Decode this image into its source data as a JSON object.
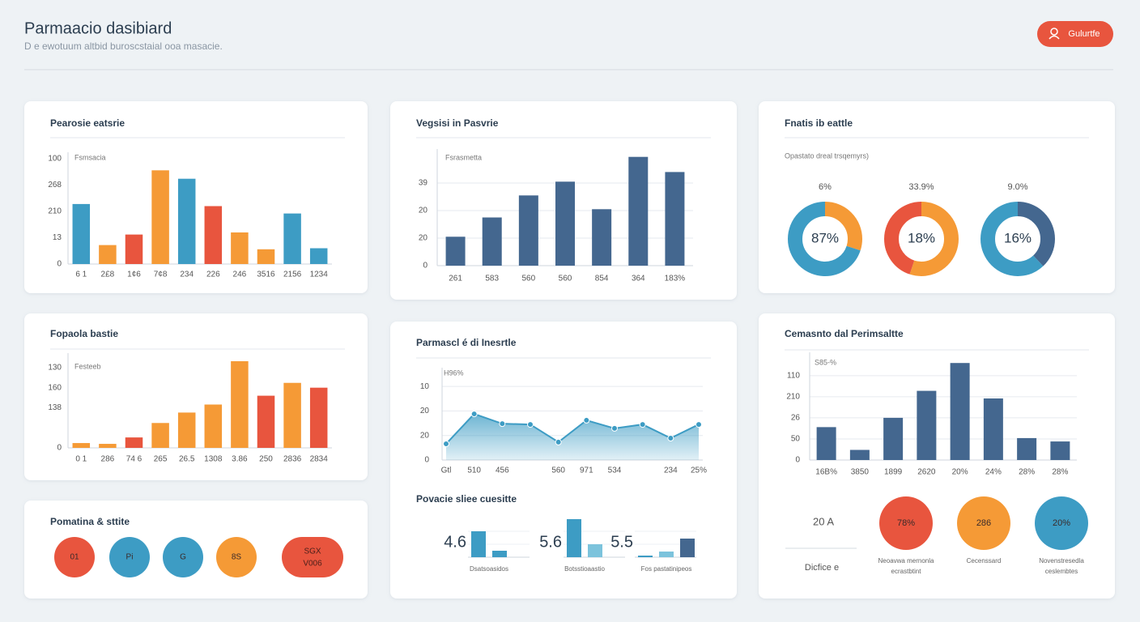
{
  "header": {
    "title": "Parmaacio dasibiard",
    "subtitle": "D e ewotuum altbid buroscstaial ooa masacie.",
    "button": "Gulurtfe"
  },
  "panels": [
    {
      "title": "Pearosie eatsrie",
      "chart": {
        "type": "bar",
        "note": "Fsmsacia",
        "categories": [
          "6 1",
          "2£8",
          "1¢6",
          "7¢8",
          "234",
          "226",
          "246",
          "3516",
          "2156",
          "1234"
        ],
        "values": [
          57,
          18,
          28,
          89,
          81,
          55,
          30,
          14,
          48,
          15
        ],
        "colors": [
          "#3d9cc4",
          "#f59a36",
          "#e8553e",
          "#f59a36",
          "#3d9cc4",
          "#e8553e",
          "#f59a36",
          "#f59a36",
          "#3d9cc4",
          "#3d9cc4"
        ],
        "ylim": [
          0,
          100
        ],
        "yticks": [
          0,
          {
            "value": 25,
            "label": "13"
          },
          {
            "value": 50,
            "label": "210"
          },
          {
            "value": 75,
            "label": "268"
          },
          100
        ],
        "grid": false
      }
    },
    {
      "title": "Vegsisi in Pasvrie",
      "chart": {
        "type": "bar",
        "note": "Fsrasmetta",
        "categories": [
          "261",
          "583",
          "560",
          "560",
          "854",
          "364",
          "183%"
        ],
        "values": [
          10.5,
          17.5,
          25.5,
          30.5,
          20.5,
          39.5,
          34
        ],
        "colors": [
          "#44678f",
          "#44678f",
          "#44678f",
          "#44678f",
          "#44678f",
          "#44678f",
          "#44678f"
        ],
        "ylim": [
          0,
          40
        ],
        "yticks": [
          0,
          {
            "value": 10,
            "label": "20"
          },
          20,
          {
            "value": 30,
            "label": "39"
          }
        ],
        "grid": true
      }
    },
    {
      "title": "Fnatis ib eattle",
      "chart": {
        "type": "donut",
        "note": "Opastato dreal trsqemyrs)",
        "items": [
          {
            "label": "6%",
            "center": "87%",
            "segments": [
              {
                "color": "#f59a36",
                "value": 30
              },
              {
                "color": "#3d9cc4",
                "value": 70
              }
            ]
          },
          {
            "label": "33.9%",
            "center": "18%",
            "segments": [
              {
                "color": "#f59a36",
                "value": 55
              },
              {
                "color": "#e8553e",
                "value": 45
              }
            ]
          },
          {
            "label": "9.0%",
            "center": "16%",
            "segments": [
              {
                "color": "#44678f",
                "value": 38
              },
              {
                "color": "#3d9cc4",
                "value": 62
              }
            ]
          }
        ]
      }
    },
    {
      "title": "Fopaola bastie",
      "chart": {
        "type": "bar",
        "note": "Festeeb",
        "categories": [
          "0 1",
          "286",
          "74 6",
          "265",
          "26.5",
          "1308",
          "3.86",
          "250",
          "2836",
          "2834"
        ],
        "values": [
          6,
          5,
          13,
          31,
          44,
          54,
          108,
          65,
          81,
          75
        ],
        "colors": [
          "#f59a36",
          "#f59a36",
          "#e8553e",
          "#f59a36",
          "#f59a36",
          "#f59a36",
          "#f59a36",
          "#e8553e",
          "#f59a36",
          "#e8553e"
        ],
        "ylim": [
          0,
          110
        ],
        "yticks": [
          0,
          {
            "value": 50,
            "label": "138"
          },
          {
            "value": 75,
            "label": "160"
          },
          {
            "value": 100,
            "label": "130"
          }
        ],
        "grid": false
      }
    },
    {
      "title": "Pomatina & sttite",
      "chart": {
        "type": "badges",
        "items": [
          {
            "label": "01",
            "color": "#e8553e"
          },
          {
            "label": "Pi",
            "color": "#3d9cc4"
          },
          {
            "label": "G",
            "color": "#3d9cc4"
          },
          {
            "label": "8S",
            "color": "#f59a36"
          }
        ],
        "pill": [
          "SGX",
          "V006"
        ]
      }
    },
    {
      "title": "Parmascl é di Inesrtle",
      "chart": {
        "type": "line",
        "note": "H96%",
        "categories": [
          "Gtl",
          "510",
          "456",
          null,
          "560",
          "971",
          "534",
          null,
          "234",
          "25%"
        ],
        "values": [
          6.6,
          18.8,
          14.8,
          14.5,
          7.3,
          16.2,
          12.9,
          14.5,
          8.9,
          14.5
        ],
        "color": "#3d9cc4",
        "ylim": [
          0,
          35
        ],
        "yticks": [
          0,
          {
            "value": 10,
            "label": "20"
          },
          20,
          {
            "value": 30,
            "label": "10"
          }
        ],
        "grid": true
      },
      "sub": {
        "title": "Povacie sliee cuesitte",
        "ylim": [
          0,
          50
        ],
        "groups": [
          {
            "number": "4.6",
            "caption": "Dsatsoasidos",
            "values": [
              32,
              8
            ],
            "colors": [
              "#3d9cc4",
              "#3d9cc4"
            ]
          },
          {
            "number": "5.6",
            "caption": "Botsstioaastio",
            "values": [
              47,
              16
            ],
            "colors": [
              "#3d9cc4",
              "#7cc3dc"
            ]
          },
          {
            "number": "5.5",
            "caption": "Fos pastatinipeos",
            "values": [
              2,
              7,
              23
            ],
            "colors": [
              "#3d9cc4",
              "#7cc3dc",
              "#44678f"
            ]
          }
        ]
      }
    },
    {
      "title": "Cemasnto dal Perimsaltte",
      "chart": {
        "type": "bar",
        "note": "S85-%",
        "categories": [
          "16B%",
          "3850",
          "1899",
          "2620",
          "20%",
          "24%",
          "28%",
          "28%"
        ],
        "values": [
          39,
          12,
          50,
          82,
          115,
          73,
          26,
          22
        ],
        "colors": [
          "#44678f",
          "#44678f",
          "#44678f",
          "#44678f",
          "#44678f",
          "#44678f",
          "#44678f",
          "#44678f"
        ],
        "ylim": [
          0,
          120
        ],
        "yticks": [
          0,
          {
            "value": 25,
            "label": "50"
          },
          {
            "value": 50,
            "label": "26"
          },
          {
            "value": 75,
            "label": "210"
          },
          {
            "value": 100,
            "label": "110"
          }
        ],
        "grid": true
      },
      "extra": {
        "stat": "20 A",
        "stat_caption": "Dicfice e",
        "circles": [
          {
            "label": "78%",
            "color": "#e8553e",
            "caption": [
              "Neoavwa mernonla",
              "ecrastbtint"
            ]
          },
          {
            "label": "286",
            "color": "#f59a36",
            "caption": [
              "Cecenssard"
            ]
          },
          {
            "label": "20%",
            "color": "#3d9cc4",
            "caption": [
              "Novenstresedla",
              "ceslembtes"
            ]
          }
        ]
      }
    }
  ]
}
